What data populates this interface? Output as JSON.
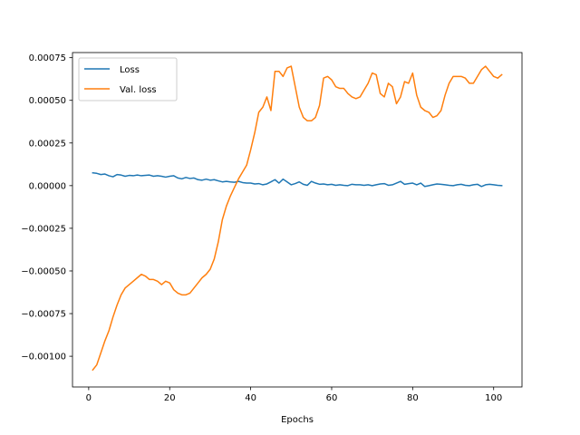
{
  "chart_data": {
    "type": "line",
    "title": "",
    "xlabel": "Epochs",
    "ylabel": "",
    "xlim": [
      -4,
      107
    ],
    "ylim": [
      -0.00118,
      0.00078
    ],
    "grid": false,
    "legend_position": "top-left",
    "x_ticks": [
      0,
      20,
      40,
      60,
      80,
      100
    ],
    "x_tick_labels": [
      "0",
      "20",
      "40",
      "60",
      "80",
      "100"
    ],
    "y_ticks": [
      -0.001,
      -0.00075,
      -0.0005,
      -0.00025,
      0,
      0.00025,
      0.0005,
      0.00075
    ],
    "y_tick_labels": [
      "−0.00100",
      "−0.00075",
      "−0.00050",
      "−0.00025",
      "0.00000",
      "0.00025",
      "0.00050",
      "0.00075"
    ],
    "x": [
      1,
      2,
      3,
      4,
      5,
      6,
      7,
      8,
      9,
      10,
      11,
      12,
      13,
      14,
      15,
      16,
      17,
      18,
      19,
      20,
      21,
      22,
      23,
      24,
      25,
      26,
      27,
      28,
      29,
      30,
      31,
      32,
      33,
      34,
      35,
      36,
      37,
      38,
      39,
      40,
      41,
      42,
      43,
      44,
      45,
      46,
      47,
      48,
      49,
      50,
      51,
      52,
      53,
      54,
      55,
      56,
      57,
      58,
      59,
      60,
      61,
      62,
      63,
      64,
      65,
      66,
      67,
      68,
      69,
      70,
      71,
      72,
      73,
      74,
      75,
      76,
      77,
      78,
      79,
      80,
      81,
      82,
      83,
      84,
      85,
      86,
      87,
      88,
      89,
      90,
      91,
      92,
      93,
      94,
      95,
      96,
      97,
      98,
      99,
      100,
      101,
      102
    ],
    "series": [
      {
        "name": "Loss",
        "color": "#1f77b4",
        "values": [
          7.5e-05,
          7.2e-05,
          6.5e-05,
          6.8e-05,
          5.8e-05,
          5.2e-05,
          6.5e-05,
          6.2e-05,
          5.5e-05,
          6e-05,
          5.8e-05,
          6.2e-05,
          5.8e-05,
          6e-05,
          6.2e-05,
          5.5e-05,
          5.8e-05,
          5.5e-05,
          5e-05,
          5.5e-05,
          5.8e-05,
          4.5e-05,
          4e-05,
          4.8e-05,
          4.2e-05,
          4.5e-05,
          3.5e-05,
          3.2e-05,
          3.8e-05,
          3.2e-05,
          3.5e-05,
          2.8e-05,
          2.2e-05,
          2.5e-05,
          2.2e-05,
          2e-05,
          2.5e-05,
          1.8e-05,
          1.5e-05,
          1.5e-05,
          1e-05,
          1.2e-05,
          5e-06,
          1e-05,
          2.2e-05,
          3.5e-05,
          1.5e-05,
          3.8e-05,
          2.2e-05,
          5e-06,
          1.2e-05,
          2.2e-05,
          8e-06,
          2e-06,
          2.5e-05,
          1.5e-05,
          8e-06,
          1e-05,
          5e-06,
          8e-06,
          2e-06,
          5e-06,
          2e-06,
          0,
          8e-06,
          5e-06,
          5e-06,
          2e-06,
          5e-06,
          0,
          5e-06,
          1e-05,
          1.2e-05,
          2e-06,
          5e-06,
          1.5e-05,
          2.5e-05,
          8e-06,
          1.2e-05,
          1.5e-05,
          5e-06,
          1.5e-05,
          -5e-06,
          0,
          5e-06,
          1e-05,
          8e-06,
          5e-06,
          2e-06,
          0,
          5e-06,
          8e-06,
          2e-06,
          0,
          5e-06,
          8e-06,
          -5e-06,
          5e-06,
          8e-06,
          5e-06,
          2e-06,
          0
        ]
      },
      {
        "name": "Val. loss",
        "color": "#ff7f0e",
        "values": [
          -0.00108,
          -0.00105,
          -0.00098,
          -0.00091,
          -0.00085,
          -0.00077,
          -0.0007,
          -0.00064,
          -0.0006,
          -0.00058,
          -0.00056,
          -0.00054,
          -0.00052,
          -0.00053,
          -0.00055,
          -0.00055,
          -0.00056,
          -0.00058,
          -0.00056,
          -0.00057,
          -0.00061,
          -0.00063,
          -0.00064,
          -0.00064,
          -0.00063,
          -0.0006,
          -0.00057,
          -0.00054,
          -0.00052,
          -0.00049,
          -0.00043,
          -0.00033,
          -0.0002,
          -0.00012,
          -6e-05,
          -1e-05,
          4e-05,
          8e-05,
          0.00012,
          0.00021,
          0.00031,
          0.00043,
          0.00046,
          0.00052,
          0.00044,
          0.00067,
          0.00067,
          0.00064,
          0.00069,
          0.0007,
          0.00058,
          0.00046,
          0.0004,
          0.00038,
          0.00038,
          0.0004,
          0.00047,
          0.00063,
          0.00064,
          0.00062,
          0.00058,
          0.00057,
          0.00057,
          0.00054,
          0.00052,
          0.00051,
          0.00052,
          0.00056,
          0.0006,
          0.00066,
          0.00065,
          0.00054,
          0.00052,
          0.0006,
          0.00058,
          0.00048,
          0.00052,
          0.00061,
          0.0006,
          0.00066,
          0.00053,
          0.00046,
          0.00044,
          0.00043,
          0.0004,
          0.00041,
          0.00044,
          0.00053,
          0.0006,
          0.00064,
          0.00064,
          0.00064,
          0.00063,
          0.0006,
          0.0006,
          0.00064,
          0.00068,
          0.0007,
          0.00067,
          0.00064,
          0.00063,
          0.00065
        ]
      }
    ]
  }
}
